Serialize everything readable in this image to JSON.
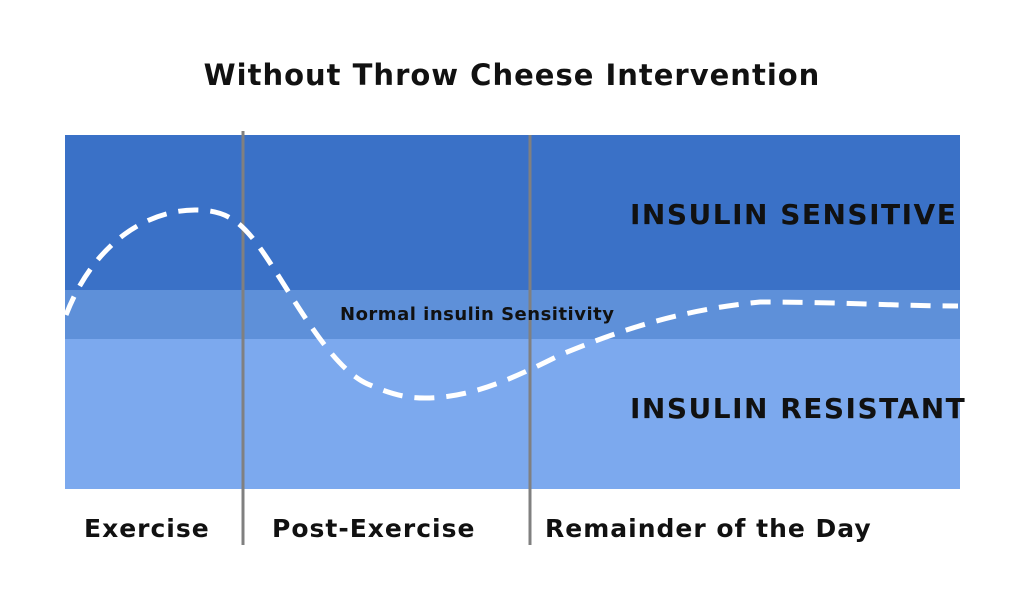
{
  "title": "Without Throw Cheese Intervention",
  "zones": {
    "sensitive": {
      "label": "INSULIN SENSITIVE",
      "color": "#3a71c7"
    },
    "normal": {
      "label": "Normal insulin Sensitivity",
      "color": "#5e90d9"
    },
    "resistant": {
      "label": "INSULIN RESISTANT",
      "color": "#7ca9ee"
    }
  },
  "phases": [
    {
      "label": "Exercise"
    },
    {
      "label": "Post-Exercise"
    },
    {
      "label": "Remainder of the Day"
    }
  ],
  "colors": {
    "divider": "#808080",
    "curve": "#ffffff",
    "text": "#111111"
  }
}
